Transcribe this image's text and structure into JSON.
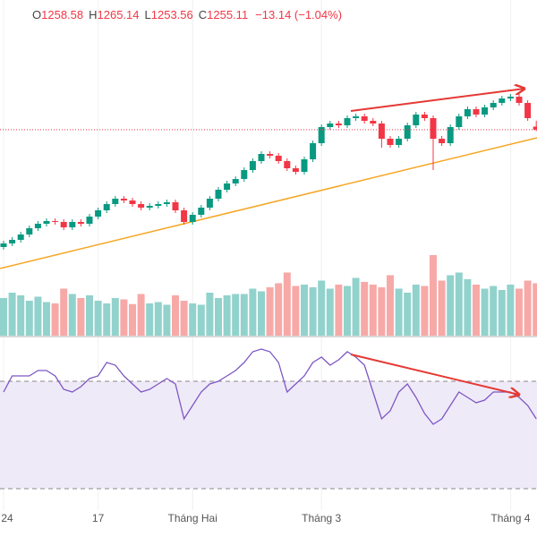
{
  "chart_data": {
    "type": "candlestick",
    "header": {
      "items": [
        {
          "label": "O",
          "value": "1258.58"
        },
        {
          "label": "H",
          "value": "1265.14"
        },
        {
          "label": "L",
          "value": "1253.56"
        },
        {
          "label": "C",
          "value": "1255.11"
        }
      ],
      "change": "−13.14 (−1.04%)"
    },
    "categories": [
      "24",
      null,
      null,
      null,
      null,
      null,
      null,
      null,
      null,
      null,
      null,
      "17",
      null,
      null,
      null,
      null,
      null,
      null,
      null,
      null,
      null,
      null,
      "Tháng Hai",
      null,
      null,
      null,
      null,
      null,
      null,
      null,
      null,
      null,
      null,
      null,
      null,
      null,
      null,
      "Tháng 3",
      null,
      null,
      null,
      null,
      null,
      null,
      null,
      null,
      null,
      null,
      null,
      null,
      null,
      null,
      null,
      null,
      null,
      null,
      null,
      null,
      null,
      "Tháng 4",
      null,
      null,
      null
    ],
    "open": [
      1124,
      1128,
      1132,
      1138,
      1145,
      1150,
      1153,
      1152,
      1146,
      1152,
      1150,
      1158,
      1165,
      1172,
      1178,
      1176,
      1172,
      1168,
      1170,
      1172,
      1174,
      1165,
      1152,
      1160,
      1168,
      1178,
      1188,
      1195,
      1200,
      1210,
      1220,
      1228,
      1226,
      1220,
      1212,
      1208,
      1222,
      1240,
      1258,
      1262,
      1260,
      1268,
      1270,
      1265,
      1262,
      1245,
      1238,
      1245,
      1260,
      1272,
      1268,
      1245,
      1240,
      1258,
      1270,
      1278,
      1272,
      1280,
      1285,
      1290,
      1292,
      1285,
      1258.58
    ],
    "high": [
      1131,
      1135,
      1141,
      1148,
      1153,
      1156,
      1156,
      1155,
      1155,
      1155,
      1161,
      1168,
      1175,
      1181,
      1181,
      1179,
      1175,
      1173,
      1175,
      1177,
      1177,
      1168,
      1163,
      1171,
      1181,
      1191,
      1198,
      1203,
      1213,
      1223,
      1231,
      1231,
      1229,
      1223,
      1215,
      1225,
      1243,
      1261,
      1265,
      1265,
      1271,
      1273,
      1273,
      1268,
      1265,
      1248,
      1248,
      1263,
      1275,
      1275,
      1271,
      1248,
      1261,
      1273,
      1281,
      1281,
      1283,
      1288,
      1293,
      1295,
      1295,
      1288,
      1265.14
    ],
    "low": [
      1121,
      1125,
      1129,
      1135,
      1142,
      1147,
      1149,
      1143,
      1143,
      1147,
      1147,
      1155,
      1162,
      1169,
      1173,
      1169,
      1165,
      1165,
      1167,
      1169,
      1162,
      1149,
      1149,
      1157,
      1165,
      1175,
      1185,
      1192,
      1197,
      1207,
      1217,
      1223,
      1217,
      1209,
      1205,
      1205,
      1219,
      1237,
      1255,
      1257,
      1257,
      1265,
      1262,
      1259,
      1235,
      1235,
      1235,
      1242,
      1257,
      1265,
      1210,
      1237,
      1237,
      1255,
      1267,
      1269,
      1269,
      1277,
      1282,
      1287,
      1282,
      1265,
      1253.56
    ],
    "close": [
      1128,
      1132,
      1138,
      1145,
      1150,
      1153,
      1152,
      1146,
      1152,
      1150,
      1158,
      1165,
      1172,
      1178,
      1176,
      1172,
      1168,
      1170,
      1172,
      1174,
      1165,
      1152,
      1160,
      1168,
      1178,
      1188,
      1195,
      1200,
      1210,
      1220,
      1228,
      1226,
      1220,
      1212,
      1208,
      1222,
      1240,
      1258,
      1262,
      1260,
      1268,
      1270,
      1265,
      1262,
      1245,
      1238,
      1245,
      1260,
      1272,
      1268,
      1245,
      1240,
      1258,
      1270,
      1278,
      1272,
      1280,
      1285,
      1290,
      1292,
      1285,
      1268,
      1255.11
    ],
    "ylim": [
      1025,
      1400
    ],
    "up_color": "#089981",
    "down_color": "#f23645",
    "volume": {
      "values": [
        560,
        640,
        600,
        520,
        580,
        500,
        480,
        700,
        620,
        560,
        600,
        520,
        480,
        560,
        540,
        470,
        620,
        480,
        500,
        460,
        600,
        520,
        480,
        460,
        640,
        560,
        600,
        620,
        620,
        700,
        660,
        720,
        780,
        940,
        740,
        760,
        720,
        820,
        700,
        760,
        740,
        860,
        800,
        760,
        720,
        900,
        700,
        640,
        760,
        740,
        1200,
        820,
        900,
        940,
        840,
        760,
        700,
        740,
        680,
        760,
        700,
        820,
        780
      ],
      "ylim": [
        0,
        2000
      ],
      "up_color": "#92d2cc",
      "down_color": "#f7a9a7"
    },
    "rsi": {
      "values": [
        66,
        72,
        72,
        72,
        74,
        74,
        72,
        67,
        66,
        68,
        71,
        72,
        77,
        76,
        72,
        69,
        66,
        67,
        69,
        71,
        69,
        56,
        61,
        66,
        69,
        70,
        72,
        74,
        77,
        81,
        82,
        81,
        77,
        66,
        69,
        72,
        77,
        79,
        76,
        78,
        81,
        79,
        76,
        66,
        56,
        59,
        66,
        69,
        64,
        58,
        54,
        56,
        61,
        66,
        64,
        62,
        63,
        66,
        66,
        66,
        64,
        61,
        56
      ],
      "ylim": [
        22,
        86
      ],
      "levels": [
        70,
        30
      ],
      "color": "#7e57c2",
      "band_color": "#efeaf8"
    }
  }
}
